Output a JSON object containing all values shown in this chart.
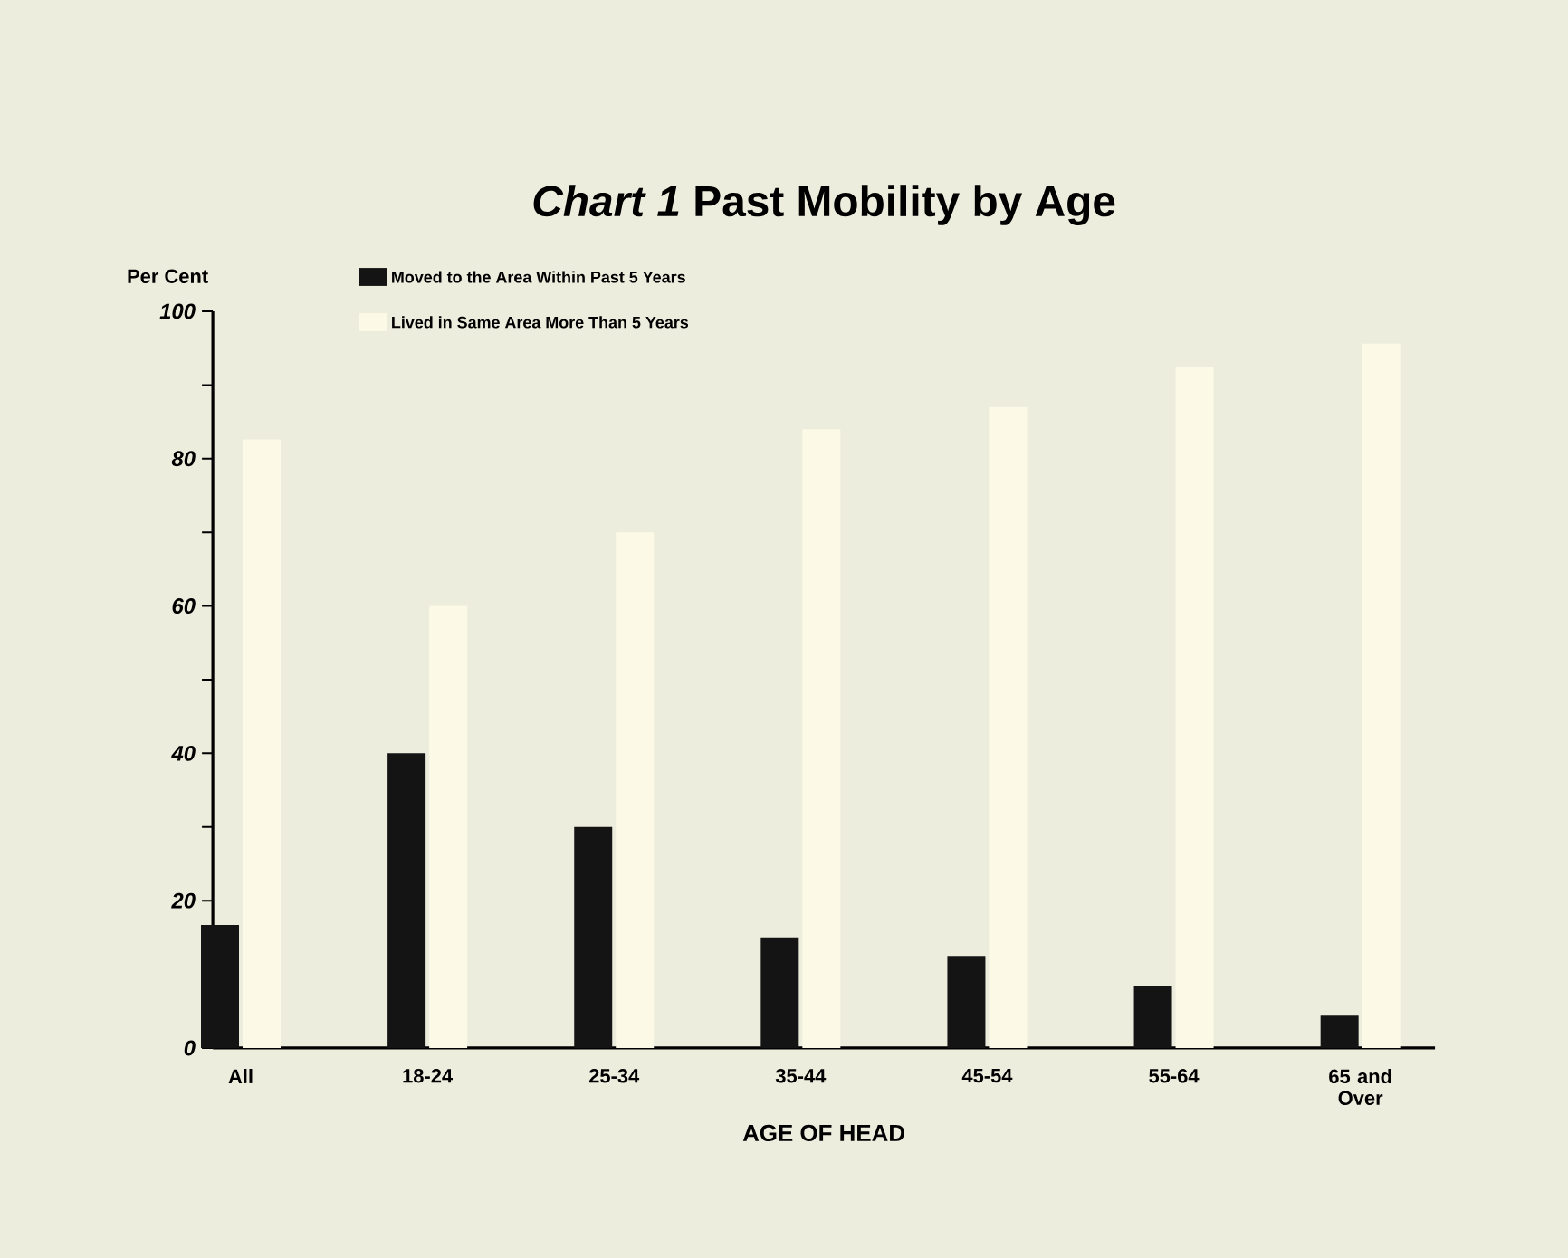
{
  "chart_data": {
    "type": "bar",
    "title": "*Chart 1* **Past Mobility by Age**",
    "xlabel": "AGE OF HEAD",
    "ylabel": "Per Cent",
    "categories": [
      "All",
      "18-24",
      "25-34",
      "35-44",
      "45-54",
      "55-64",
      "65 and Over"
    ],
    "series": [
      {
        "name": "Moved to the Area Within Past 5 Years",
        "color": "#141414",
        "values": [
          16.7,
          40,
          30,
          15,
          12.5,
          8.4,
          4.4
        ]
      },
      {
        "name": "Lived in Same Area More Than 5 Years",
        "color": "#fcf9e6",
        "values": [
          82.6,
          60,
          70,
          84,
          87,
          92.5,
          95.6
        ]
      }
    ],
    "ylim": [
      0,
      100
    ],
    "yticks": [
      0,
      {
        "value": 10,
        "label": null
      },
      20,
      {
        "value": 30,
        "label": null
      },
      40,
      {
        "value": 50,
        "label": null
      },
      60,
      {
        "value": 70,
        "label": null
      },
      80,
      {
        "value": 90,
        "label": null
      },
      100
    ],
    "grid": false,
    "legend": "top left"
  }
}
